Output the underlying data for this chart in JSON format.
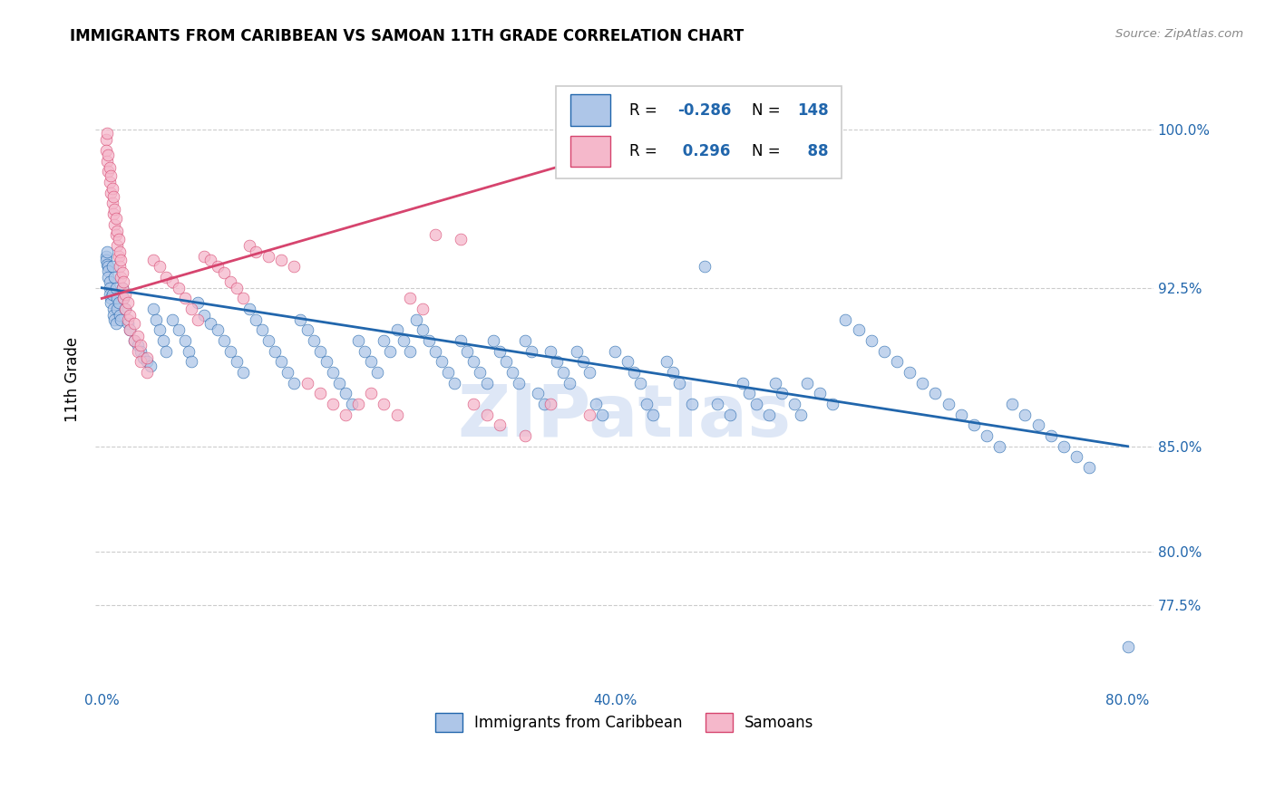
{
  "title": "IMMIGRANTS FROM CARIBBEAN VS SAMOAN 11TH GRADE CORRELATION CHART",
  "source": "Source: ZipAtlas.com",
  "ylabel": "11th Grade",
  "xlim": [
    -0.005,
    0.82
  ],
  "ylim": [
    0.735,
    1.028
  ],
  "r_blue": -0.286,
  "n_blue": 148,
  "r_pink": 0.296,
  "n_pink": 88,
  "blue_color": "#aec6e8",
  "pink_color": "#f5b8cb",
  "line_blue": "#2166ac",
  "line_pink": "#d6446e",
  "watermark": "ZIPatlas",
  "legend_label_blue": "Immigrants from Caribbean",
  "legend_label_pink": "Samoans",
  "x_tick_positions": [
    0.0,
    0.1,
    0.2,
    0.3,
    0.4,
    0.5,
    0.6,
    0.7,
    0.8
  ],
  "x_tick_labels": [
    "0.0%",
    "",
    "",
    "",
    "40.0%",
    "",
    "",
    "",
    "80.0%"
  ],
  "y_tick_positions": [
    0.775,
    0.8,
    0.85,
    0.925,
    1.0
  ],
  "y_tick_labels": [
    "77.5%",
    "80.0%",
    "85.0%",
    "92.5%",
    "100.0%"
  ],
  "blue_line_x": [
    0.0,
    0.8
  ],
  "blue_line_y": [
    0.925,
    0.85
  ],
  "pink_line_x": [
    0.0,
    0.4
  ],
  "pink_line_y": [
    0.92,
    0.99
  ],
  "blue_scatter": [
    [
      0.003,
      0.94
    ],
    [
      0.003,
      0.938
    ],
    [
      0.004,
      0.942
    ],
    [
      0.004,
      0.936
    ],
    [
      0.005,
      0.935
    ],
    [
      0.005,
      0.933
    ],
    [
      0.005,
      0.93
    ],
    [
      0.006,
      0.928
    ],
    [
      0.006,
      0.925
    ],
    [
      0.006,
      0.922
    ],
    [
      0.007,
      0.92
    ],
    [
      0.007,
      0.918
    ],
    [
      0.008,
      0.935
    ],
    [
      0.008,
      0.922
    ],
    [
      0.009,
      0.915
    ],
    [
      0.009,
      0.912
    ],
    [
      0.01,
      0.91
    ],
    [
      0.01,
      0.93
    ],
    [
      0.011,
      0.908
    ],
    [
      0.011,
      0.925
    ],
    [
      0.012,
      0.92
    ],
    [
      0.012,
      0.915
    ],
    [
      0.013,
      0.918
    ],
    [
      0.014,
      0.912
    ],
    [
      0.015,
      0.91
    ],
    [
      0.016,
      0.925
    ],
    [
      0.017,
      0.92
    ],
    [
      0.018,
      0.915
    ],
    [
      0.02,
      0.908
    ],
    [
      0.022,
      0.905
    ],
    [
      0.025,
      0.9
    ],
    [
      0.028,
      0.898
    ],
    [
      0.03,
      0.895
    ],
    [
      0.032,
      0.892
    ],
    [
      0.035,
      0.89
    ],
    [
      0.038,
      0.888
    ],
    [
      0.04,
      0.915
    ],
    [
      0.042,
      0.91
    ],
    [
      0.045,
      0.905
    ],
    [
      0.048,
      0.9
    ],
    [
      0.05,
      0.895
    ],
    [
      0.055,
      0.91
    ],
    [
      0.06,
      0.905
    ],
    [
      0.065,
      0.9
    ],
    [
      0.068,
      0.895
    ],
    [
      0.07,
      0.89
    ],
    [
      0.075,
      0.918
    ],
    [
      0.08,
      0.912
    ],
    [
      0.085,
      0.908
    ],
    [
      0.09,
      0.905
    ],
    [
      0.095,
      0.9
    ],
    [
      0.1,
      0.895
    ],
    [
      0.105,
      0.89
    ],
    [
      0.11,
      0.885
    ],
    [
      0.115,
      0.915
    ],
    [
      0.12,
      0.91
    ],
    [
      0.125,
      0.905
    ],
    [
      0.13,
      0.9
    ],
    [
      0.135,
      0.895
    ],
    [
      0.14,
      0.89
    ],
    [
      0.145,
      0.885
    ],
    [
      0.15,
      0.88
    ],
    [
      0.155,
      0.91
    ],
    [
      0.16,
      0.905
    ],
    [
      0.165,
      0.9
    ],
    [
      0.17,
      0.895
    ],
    [
      0.175,
      0.89
    ],
    [
      0.18,
      0.885
    ],
    [
      0.185,
      0.88
    ],
    [
      0.19,
      0.875
    ],
    [
      0.195,
      0.87
    ],
    [
      0.2,
      0.9
    ],
    [
      0.205,
      0.895
    ],
    [
      0.21,
      0.89
    ],
    [
      0.215,
      0.885
    ],
    [
      0.22,
      0.9
    ],
    [
      0.225,
      0.895
    ],
    [
      0.23,
      0.905
    ],
    [
      0.235,
      0.9
    ],
    [
      0.24,
      0.895
    ],
    [
      0.245,
      0.91
    ],
    [
      0.25,
      0.905
    ],
    [
      0.255,
      0.9
    ],
    [
      0.26,
      0.895
    ],
    [
      0.265,
      0.89
    ],
    [
      0.27,
      0.885
    ],
    [
      0.275,
      0.88
    ],
    [
      0.28,
      0.9
    ],
    [
      0.285,
      0.895
    ],
    [
      0.29,
      0.89
    ],
    [
      0.295,
      0.885
    ],
    [
      0.3,
      0.88
    ],
    [
      0.305,
      0.9
    ],
    [
      0.31,
      0.895
    ],
    [
      0.315,
      0.89
    ],
    [
      0.32,
      0.885
    ],
    [
      0.325,
      0.88
    ],
    [
      0.33,
      0.9
    ],
    [
      0.335,
      0.895
    ],
    [
      0.34,
      0.875
    ],
    [
      0.345,
      0.87
    ],
    [
      0.35,
      0.895
    ],
    [
      0.355,
      0.89
    ],
    [
      0.36,
      0.885
    ],
    [
      0.365,
      0.88
    ],
    [
      0.37,
      0.895
    ],
    [
      0.375,
      0.89
    ],
    [
      0.38,
      0.885
    ],
    [
      0.385,
      0.87
    ],
    [
      0.39,
      0.865
    ],
    [
      0.4,
      0.895
    ],
    [
      0.41,
      0.89
    ],
    [
      0.415,
      0.885
    ],
    [
      0.42,
      0.88
    ],
    [
      0.425,
      0.87
    ],
    [
      0.43,
      0.865
    ],
    [
      0.44,
      0.89
    ],
    [
      0.445,
      0.885
    ],
    [
      0.45,
      0.88
    ],
    [
      0.46,
      0.87
    ],
    [
      0.47,
      0.935
    ],
    [
      0.48,
      0.87
    ],
    [
      0.49,
      0.865
    ],
    [
      0.5,
      0.88
    ],
    [
      0.505,
      0.875
    ],
    [
      0.51,
      0.87
    ],
    [
      0.52,
      0.865
    ],
    [
      0.525,
      0.88
    ],
    [
      0.53,
      0.875
    ],
    [
      0.54,
      0.87
    ],
    [
      0.545,
      0.865
    ],
    [
      0.55,
      0.88
    ],
    [
      0.56,
      0.875
    ],
    [
      0.57,
      0.87
    ],
    [
      0.58,
      0.91
    ],
    [
      0.59,
      0.905
    ],
    [
      0.6,
      0.9
    ],
    [
      0.61,
      0.895
    ],
    [
      0.62,
      0.89
    ],
    [
      0.63,
      0.885
    ],
    [
      0.64,
      0.88
    ],
    [
      0.65,
      0.875
    ],
    [
      0.66,
      0.87
    ],
    [
      0.67,
      0.865
    ],
    [
      0.68,
      0.86
    ],
    [
      0.69,
      0.855
    ],
    [
      0.7,
      0.85
    ],
    [
      0.71,
      0.87
    ],
    [
      0.72,
      0.865
    ],
    [
      0.73,
      0.86
    ],
    [
      0.74,
      0.855
    ],
    [
      0.75,
      0.85
    ],
    [
      0.76,
      0.845
    ],
    [
      0.77,
      0.84
    ],
    [
      0.8,
      0.755
    ]
  ],
  "pink_scatter": [
    [
      0.003,
      0.995
    ],
    [
      0.003,
      0.99
    ],
    [
      0.004,
      0.985
    ],
    [
      0.004,
      0.998
    ],
    [
      0.005,
      0.98
    ],
    [
      0.005,
      0.988
    ],
    [
      0.006,
      0.975
    ],
    [
      0.006,
      0.982
    ],
    [
      0.007,
      0.97
    ],
    [
      0.007,
      0.978
    ],
    [
      0.008,
      0.965
    ],
    [
      0.008,
      0.972
    ],
    [
      0.009,
      0.96
    ],
    [
      0.009,
      0.968
    ],
    [
      0.01,
      0.955
    ],
    [
      0.01,
      0.962
    ],
    [
      0.011,
      0.95
    ],
    [
      0.011,
      0.958
    ],
    [
      0.012,
      0.945
    ],
    [
      0.012,
      0.952
    ],
    [
      0.013,
      0.94
    ],
    [
      0.013,
      0.948
    ],
    [
      0.014,
      0.935
    ],
    [
      0.014,
      0.942
    ],
    [
      0.015,
      0.93
    ],
    [
      0.015,
      0.938
    ],
    [
      0.016,
      0.925
    ],
    [
      0.016,
      0.932
    ],
    [
      0.017,
      0.92
    ],
    [
      0.017,
      0.928
    ],
    [
      0.018,
      0.915
    ],
    [
      0.018,
      0.922
    ],
    [
      0.02,
      0.91
    ],
    [
      0.02,
      0.918
    ],
    [
      0.022,
      0.905
    ],
    [
      0.022,
      0.912
    ],
    [
      0.025,
      0.9
    ],
    [
      0.025,
      0.908
    ],
    [
      0.028,
      0.895
    ],
    [
      0.028,
      0.902
    ],
    [
      0.03,
      0.89
    ],
    [
      0.03,
      0.898
    ],
    [
      0.035,
      0.885
    ],
    [
      0.035,
      0.892
    ],
    [
      0.04,
      0.938
    ],
    [
      0.045,
      0.935
    ],
    [
      0.05,
      0.93
    ],
    [
      0.055,
      0.928
    ],
    [
      0.06,
      0.925
    ],
    [
      0.065,
      0.92
    ],
    [
      0.07,
      0.915
    ],
    [
      0.075,
      0.91
    ],
    [
      0.08,
      0.94
    ],
    [
      0.085,
      0.938
    ],
    [
      0.09,
      0.935
    ],
    [
      0.095,
      0.932
    ],
    [
      0.1,
      0.928
    ],
    [
      0.105,
      0.925
    ],
    [
      0.11,
      0.92
    ],
    [
      0.115,
      0.945
    ],
    [
      0.12,
      0.942
    ],
    [
      0.13,
      0.94
    ],
    [
      0.14,
      0.938
    ],
    [
      0.15,
      0.935
    ],
    [
      0.16,
      0.88
    ],
    [
      0.17,
      0.875
    ],
    [
      0.18,
      0.87
    ],
    [
      0.19,
      0.865
    ],
    [
      0.2,
      0.87
    ],
    [
      0.21,
      0.875
    ],
    [
      0.22,
      0.87
    ],
    [
      0.23,
      0.865
    ],
    [
      0.24,
      0.92
    ],
    [
      0.25,
      0.915
    ],
    [
      0.26,
      0.95
    ],
    [
      0.28,
      0.948
    ],
    [
      0.29,
      0.87
    ],
    [
      0.3,
      0.865
    ],
    [
      0.31,
      0.86
    ],
    [
      0.33,
      0.855
    ],
    [
      0.35,
      0.87
    ],
    [
      0.38,
      0.865
    ]
  ]
}
